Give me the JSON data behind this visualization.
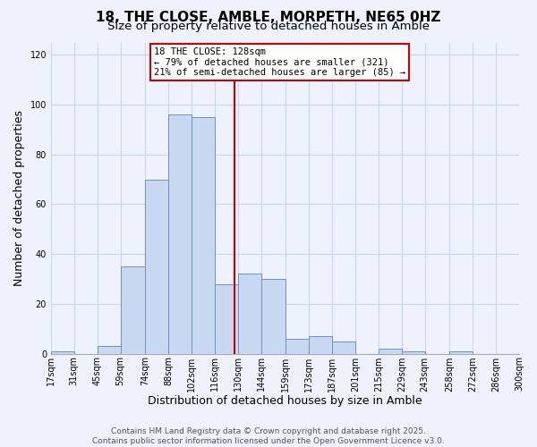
{
  "title": "18, THE CLOSE, AMBLE, MORPETH, NE65 0HZ",
  "subtitle": "Size of property relative to detached houses in Amble",
  "xlabel": "Distribution of detached houses by size in Amble",
  "ylabel": "Number of detached properties",
  "bin_edges": [
    17,
    31,
    45,
    59,
    74,
    88,
    102,
    116,
    130,
    144,
    159,
    173,
    187,
    201,
    215,
    229,
    243,
    258,
    272,
    286,
    300
  ],
  "bar_heights": [
    1,
    0,
    3,
    35,
    70,
    96,
    95,
    28,
    32,
    30,
    6,
    7,
    5,
    0,
    2,
    1,
    0,
    1,
    0,
    0
  ],
  "bar_color": "#c8d8f0",
  "bar_edge_color": "#7090c0",
  "vline_x": 128,
  "vline_color": "#cc0000",
  "annotation_title": "18 THE CLOSE: 128sqm",
  "annotation_line1": "← 79% of detached houses are smaller (321)",
  "annotation_line2": "21% of semi-detached houses are larger (85) →",
  "annotation_box_color": "#ffffff",
  "annotation_box_edge": "#cc0000",
  "ylim": [
    0,
    125
  ],
  "yticks": [
    0,
    20,
    40,
    60,
    80,
    100,
    120
  ],
  "tick_labels": [
    "17sqm",
    "31sqm",
    "45sqm",
    "59sqm",
    "74sqm",
    "88sqm",
    "102sqm",
    "116sqm",
    "130sqm",
    "144sqm",
    "159sqm",
    "173sqm",
    "187sqm",
    "201sqm",
    "215sqm",
    "229sqm",
    "243sqm",
    "258sqm",
    "272sqm",
    "286sqm",
    "300sqm"
  ],
  "footer_line1": "Contains HM Land Registry data © Crown copyright and database right 2025.",
  "footer_line2": "Contains public sector information licensed under the Open Government Licence v3.0.",
  "bg_color": "#eef2fc",
  "grid_color": "#c8d4f0",
  "title_fontsize": 11,
  "subtitle_fontsize": 9.5,
  "axis_label_fontsize": 9,
  "tick_fontsize": 7,
  "footer_fontsize": 6.5
}
